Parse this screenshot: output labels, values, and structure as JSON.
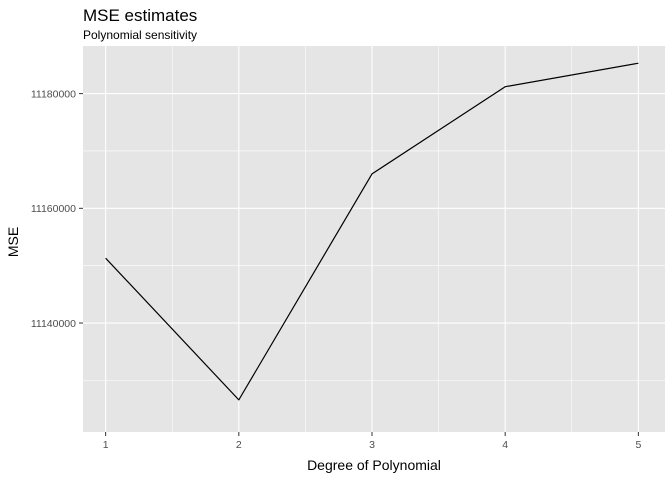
{
  "chart_data": {
    "type": "line",
    "title": "MSE estimates",
    "subtitle": "Polynomial sensitivity",
    "xlabel": "Degree of Polynomial",
    "ylabel": "MSE",
    "x": [
      1,
      2,
      3,
      4,
      5
    ],
    "x_ticks": [
      "1",
      "2",
      "3",
      "4",
      "5"
    ],
    "xlim": [
      0.83,
      5.2
    ],
    "series": [
      {
        "values": [
          11151300,
          11126600,
          11166000,
          11181200,
          11185300
        ]
      }
    ],
    "y_ticks": [
      11140000,
      11160000,
      11180000
    ],
    "y_tick_labels": [
      "11140000",
      "11160000",
      "11180000"
    ],
    "ylim": [
      11121000,
      11188300
    ],
    "grid": true,
    "line_color": "#000000",
    "panel_background": "#e5e5e5",
    "grid_color": "#ffffff"
  }
}
